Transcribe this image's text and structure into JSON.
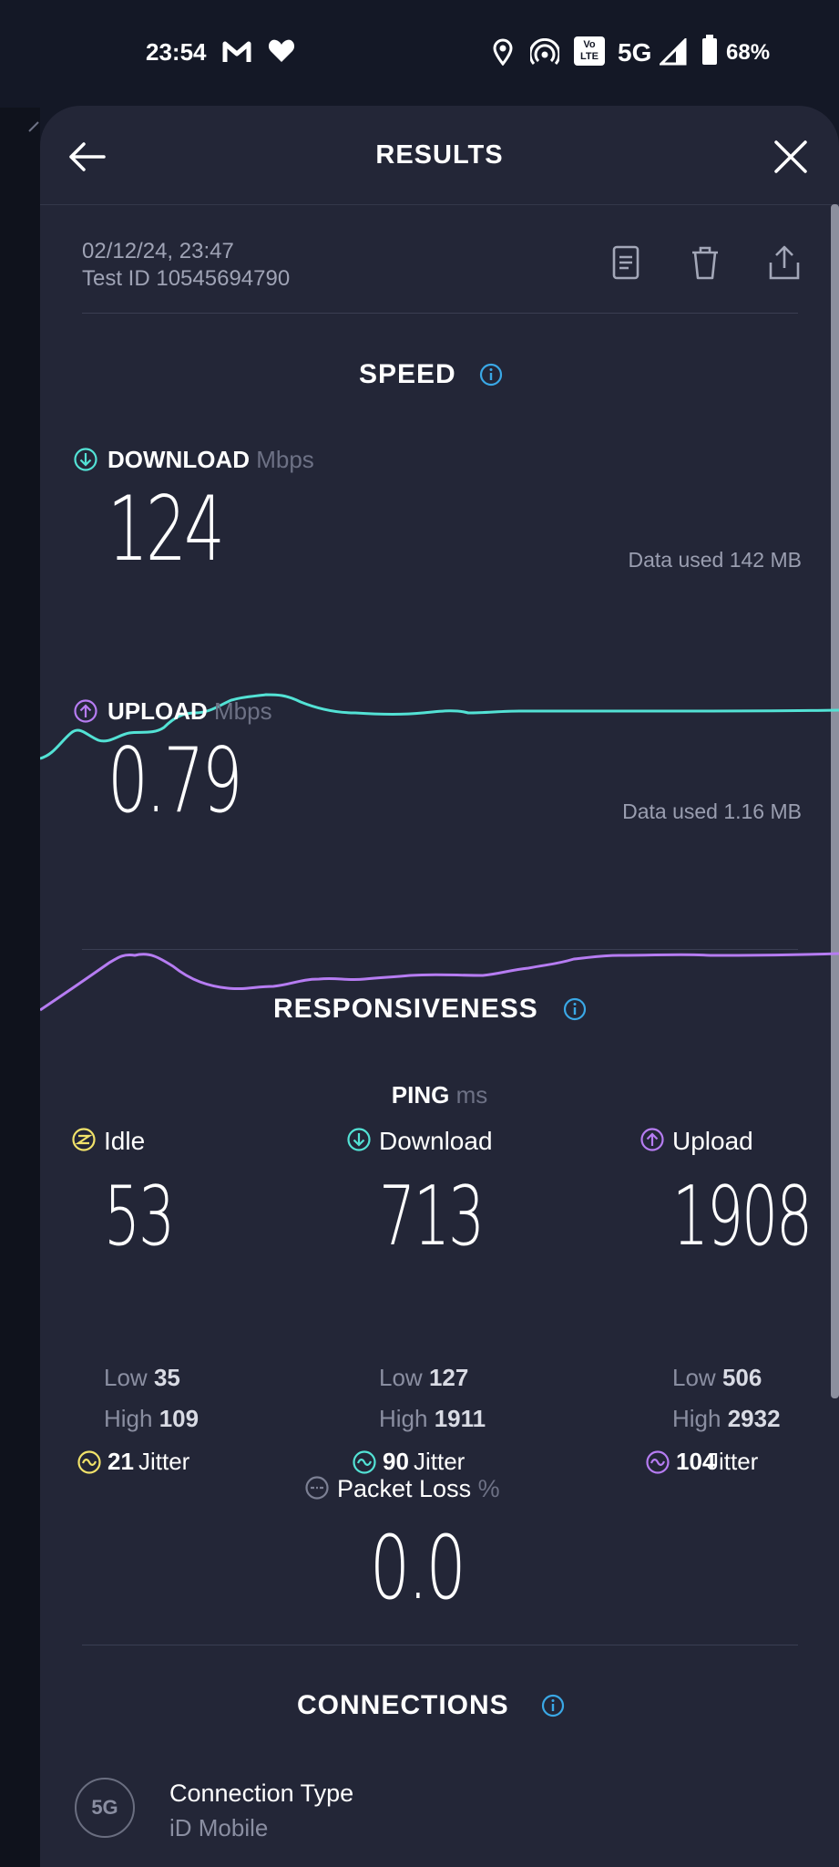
{
  "status_bar": {
    "time": "23:54",
    "network": "5G",
    "volte_line1": "Vo",
    "volte_line2": "LTE",
    "battery": "68%"
  },
  "header": {
    "title": "RESULTS"
  },
  "meta": {
    "date": "02/12/24, 23:47",
    "test_id": "Test ID 10545694790"
  },
  "speed": {
    "title": "SPEED",
    "download": {
      "label": "DOWNLOAD",
      "unit": "Mbps",
      "value": "124",
      "data_used": "Data used 142 MB"
    },
    "upload": {
      "label": "UPLOAD",
      "unit": "Mbps",
      "value": "0.79",
      "data_used": "Data used 1.16 MB"
    }
  },
  "responsiveness": {
    "title": "RESPONSIVENESS",
    "ping_label": "PING",
    "ping_unit": "ms",
    "low_label": "Low",
    "high_label": "High",
    "jitter_label": "Jitter",
    "columns": [
      {
        "name": "Idle",
        "value": "53",
        "low": "35",
        "high": "109",
        "jitter": "21"
      },
      {
        "name": "Download",
        "value": "713",
        "low": "127",
        "high": "1911",
        "jitter": "90"
      },
      {
        "name": "Upload",
        "value": "1908",
        "low": "506",
        "high": "2932",
        "jitter": "104"
      }
    ],
    "packet_loss_label": "Packet Loss",
    "packet_loss_unit": "%",
    "packet_loss_value": "0.0"
  },
  "connections": {
    "title": "CONNECTIONS",
    "badge": "5G",
    "type_label": "Connection Type",
    "type_value": "iD Mobile"
  },
  "colors": {
    "download": "#53e2d5",
    "upload": "#b67cf2",
    "idle": "#f1e26a",
    "info": "#3aa8e6"
  }
}
